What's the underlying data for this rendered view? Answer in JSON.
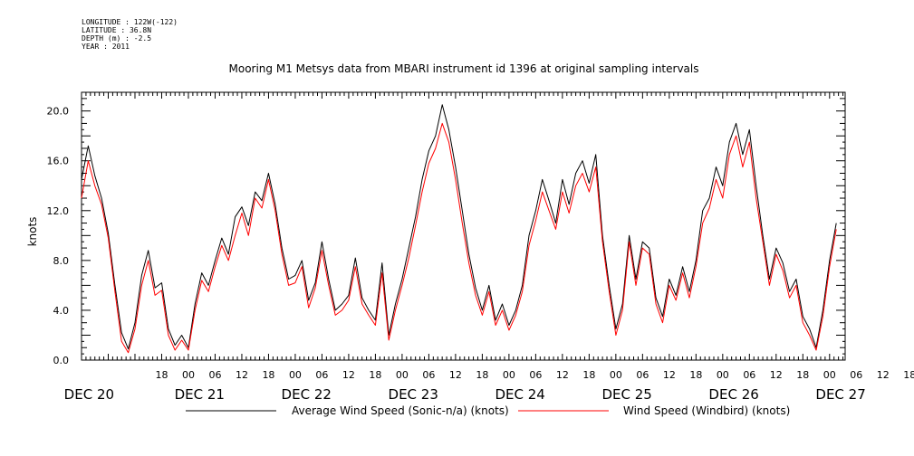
{
  "meta": {
    "longitude": "LONGITUDE : 122W(-122)",
    "latitude": "LATITUDE : 36.8N",
    "depth": "DEPTH (m) : -2.5",
    "year": "YEAR : 2011"
  },
  "chart_data": {
    "type": "line",
    "title": "Mooring M1 Metsys data from MBARI instrument id 1396 at original sampling intervals",
    "ylabel": "knots",
    "ylim": [
      0,
      21.5
    ],
    "xlim": [
      0,
      171.5
    ],
    "x_units": "hours since Dec 20 2011 00:00",
    "yticks": [
      "0.0",
      "4.0",
      "8.0",
      "12.0",
      "16.0",
      "20.0"
    ],
    "hour_tick_labels": [
      "18",
      "00",
      "06",
      "12",
      "18",
      "00",
      "06",
      "12",
      "18",
      "00",
      "06",
      "12",
      "18",
      "00",
      "06",
      "12",
      "18",
      "00",
      "06",
      "12",
      "18",
      "00",
      "06",
      "12",
      "18",
      "00",
      "06",
      "12",
      "18",
      "00",
      "06",
      "12",
      "18",
      "00",
      "06",
      "12",
      "18",
      "00",
      "06",
      "12"
    ],
    "day_labels": [
      "DEC 20",
      "DEC 21",
      "DEC 22",
      "DEC 23",
      "DEC 24",
      "DEC 25",
      "DEC 26",
      "DEC 27"
    ],
    "grid": false,
    "legend_position": "bottom",
    "series": [
      {
        "name": "Average Wind Speed (Sonic-n/a) (knots)",
        "color": "#000000",
        "points": [
          [
            0,
            14.5
          ],
          [
            1.5,
            17.2
          ],
          [
            3,
            14.8
          ],
          [
            4.5,
            13.0
          ],
          [
            6,
            10.2
          ],
          [
            7.5,
            6.0
          ],
          [
            9,
            2.2
          ],
          [
            10.5,
            0.9
          ],
          [
            12,
            3.0
          ],
          [
            13.5,
            6.8
          ],
          [
            15,
            8.8
          ],
          [
            16.5,
            5.8
          ],
          [
            18,
            6.2
          ],
          [
            19.5,
            2.5
          ],
          [
            21,
            1.2
          ],
          [
            22.5,
            2.0
          ],
          [
            24,
            1.0
          ],
          [
            25.5,
            4.5
          ],
          [
            27,
            7.0
          ],
          [
            28.5,
            6.0
          ],
          [
            30,
            8.0
          ],
          [
            31.5,
            9.8
          ],
          [
            33,
            8.5
          ],
          [
            34.5,
            11.5
          ],
          [
            36,
            12.3
          ],
          [
            37.5,
            10.8
          ],
          [
            39,
            13.5
          ],
          [
            40.5,
            12.8
          ],
          [
            42,
            15.0
          ],
          [
            43.5,
            12.5
          ],
          [
            45,
            9.0
          ],
          [
            46.5,
            6.5
          ],
          [
            48,
            6.8
          ],
          [
            49.5,
            8.0
          ],
          [
            51,
            4.8
          ],
          [
            52.5,
            6.2
          ],
          [
            54,
            9.5
          ],
          [
            55.5,
            6.5
          ],
          [
            57,
            4.0
          ],
          [
            58.5,
            4.5
          ],
          [
            60,
            5.2
          ],
          [
            61.5,
            8.2
          ],
          [
            63,
            5.0
          ],
          [
            64.5,
            4.0
          ],
          [
            66,
            3.2
          ],
          [
            67.5,
            7.8
          ],
          [
            69,
            2.0
          ],
          [
            70.5,
            4.5
          ],
          [
            72,
            6.5
          ],
          [
            73.5,
            9.0
          ],
          [
            75,
            11.5
          ],
          [
            76.5,
            14.5
          ],
          [
            78,
            16.8
          ],
          [
            79.5,
            18.0
          ],
          [
            81,
            20.5
          ],
          [
            82.5,
            18.5
          ],
          [
            84,
            15.5
          ],
          [
            85.5,
            12.0
          ],
          [
            87,
            8.5
          ],
          [
            88.5,
            5.8
          ],
          [
            90,
            4.0
          ],
          [
            91.5,
            6.0
          ],
          [
            93,
            3.2
          ],
          [
            94.5,
            4.5
          ],
          [
            96,
            2.8
          ],
          [
            97.5,
            4.0
          ],
          [
            99,
            6.0
          ],
          [
            100.5,
            10.0
          ],
          [
            102,
            12.0
          ],
          [
            103.5,
            14.5
          ],
          [
            105,
            12.8
          ],
          [
            106.5,
            11.0
          ],
          [
            108,
            14.5
          ],
          [
            109.5,
            12.5
          ],
          [
            111,
            15.0
          ],
          [
            112.5,
            16.0
          ],
          [
            114,
            14.2
          ],
          [
            115.5,
            16.5
          ],
          [
            117,
            10.0
          ],
          [
            118.5,
            6.0
          ],
          [
            120,
            2.5
          ],
          [
            121.5,
            4.5
          ],
          [
            123,
            10.0
          ],
          [
            124.5,
            6.5
          ],
          [
            126,
            9.5
          ],
          [
            127.5,
            9.0
          ],
          [
            129,
            5.0
          ],
          [
            130.5,
            3.5
          ],
          [
            132,
            6.5
          ],
          [
            133.5,
            5.2
          ],
          [
            135,
            7.5
          ],
          [
            136.5,
            5.5
          ],
          [
            138,
            8.0
          ],
          [
            139.5,
            12.0
          ],
          [
            141,
            13.0
          ],
          [
            142.5,
            15.5
          ],
          [
            144,
            14.0
          ],
          [
            145.5,
            17.5
          ],
          [
            147,
            19.0
          ],
          [
            148.5,
            16.5
          ],
          [
            150,
            18.5
          ],
          [
            151.5,
            14.0
          ],
          [
            153,
            10.0
          ],
          [
            154.5,
            6.5
          ],
          [
            156,
            9.0
          ],
          [
            157.5,
            7.8
          ],
          [
            159,
            5.5
          ],
          [
            160.5,
            6.5
          ],
          [
            162,
            3.5
          ],
          [
            163.5,
            2.5
          ],
          [
            165,
            1.0
          ],
          [
            166.5,
            4.0
          ],
          [
            168,
            8.0
          ],
          [
            169.5,
            11.0
          ]
        ]
      },
      {
        "name": "Wind Speed (Windbird) (knots)",
        "color": "#ff0000",
        "points": [
          [
            0,
            13.0
          ],
          [
            1.5,
            16.0
          ],
          [
            3,
            14.0
          ],
          [
            4.5,
            12.5
          ],
          [
            6,
            9.8
          ],
          [
            7.5,
            5.5
          ],
          [
            9,
            1.5
          ],
          [
            10.5,
            0.6
          ],
          [
            12,
            2.5
          ],
          [
            13.5,
            6.0
          ],
          [
            15,
            8.0
          ],
          [
            16.5,
            5.2
          ],
          [
            18,
            5.6
          ],
          [
            19.5,
            2.0
          ],
          [
            21,
            0.8
          ],
          [
            22.5,
            1.6
          ],
          [
            24,
            0.8
          ],
          [
            25.5,
            4.0
          ],
          [
            27,
            6.4
          ],
          [
            28.5,
            5.5
          ],
          [
            30,
            7.5
          ],
          [
            31.5,
            9.2
          ],
          [
            33,
            8.0
          ],
          [
            34.5,
            10.0
          ],
          [
            36,
            11.8
          ],
          [
            37.5,
            10.0
          ],
          [
            39,
            13.0
          ],
          [
            40.5,
            12.2
          ],
          [
            42,
            14.5
          ],
          [
            43.5,
            12.0
          ],
          [
            45,
            8.5
          ],
          [
            46.5,
            6.0
          ],
          [
            48,
            6.2
          ],
          [
            49.5,
            7.5
          ],
          [
            51,
            4.2
          ],
          [
            52.5,
            5.8
          ],
          [
            54,
            8.8
          ],
          [
            55.5,
            6.0
          ],
          [
            57,
            3.6
          ],
          [
            58.5,
            4.0
          ],
          [
            60,
            4.8
          ],
          [
            61.5,
            7.5
          ],
          [
            63,
            4.5
          ],
          [
            64.5,
            3.6
          ],
          [
            66,
            2.8
          ],
          [
            67.5,
            7.0
          ],
          [
            69,
            1.6
          ],
          [
            70.5,
            4.0
          ],
          [
            72,
            6.0
          ],
          [
            73.5,
            8.2
          ],
          [
            75,
            10.8
          ],
          [
            76.5,
            13.5
          ],
          [
            78,
            15.8
          ],
          [
            79.5,
            17.0
          ],
          [
            81,
            19.0
          ],
          [
            82.5,
            17.5
          ],
          [
            84,
            14.5
          ],
          [
            85.5,
            11.0
          ],
          [
            87,
            7.8
          ],
          [
            88.5,
            5.2
          ],
          [
            90,
            3.6
          ],
          [
            91.5,
            5.5
          ],
          [
            93,
            2.8
          ],
          [
            94.5,
            4.0
          ],
          [
            96,
            2.4
          ],
          [
            97.5,
            3.6
          ],
          [
            99,
            5.5
          ],
          [
            100.5,
            9.2
          ],
          [
            102,
            11.2
          ],
          [
            103.5,
            13.5
          ],
          [
            105,
            12.0
          ],
          [
            106.5,
            10.5
          ],
          [
            108,
            13.5
          ],
          [
            109.5,
            11.8
          ],
          [
            111,
            14.0
          ],
          [
            112.5,
            15.0
          ],
          [
            114,
            13.5
          ],
          [
            115.5,
            15.5
          ],
          [
            117,
            9.5
          ],
          [
            118.5,
            5.5
          ],
          [
            120,
            2.0
          ],
          [
            121.5,
            4.0
          ],
          [
            123,
            9.5
          ],
          [
            124.5,
            6.0
          ],
          [
            126,
            9.0
          ],
          [
            127.5,
            8.5
          ],
          [
            129,
            4.5
          ],
          [
            130.5,
            3.0
          ],
          [
            132,
            6.0
          ],
          [
            133.5,
            4.8
          ],
          [
            135,
            7.0
          ],
          [
            136.5,
            5.0
          ],
          [
            138,
            7.5
          ],
          [
            139.5,
            11.0
          ],
          [
            141,
            12.2
          ],
          [
            142.5,
            14.5
          ],
          [
            144,
            13.0
          ],
          [
            145.5,
            16.5
          ],
          [
            147,
            18.0
          ],
          [
            148.5,
            15.5
          ],
          [
            150,
            17.5
          ],
          [
            151.5,
            13.0
          ],
          [
            153,
            9.5
          ],
          [
            154.5,
            6.0
          ],
          [
            156,
            8.5
          ],
          [
            157.5,
            7.2
          ],
          [
            159,
            5.0
          ],
          [
            160.5,
            6.0
          ],
          [
            162,
            3.0
          ],
          [
            163.5,
            2.0
          ],
          [
            165,
            0.8
          ],
          [
            166.5,
            3.5
          ],
          [
            168,
            7.5
          ],
          [
            169.5,
            10.5
          ]
        ]
      }
    ]
  }
}
